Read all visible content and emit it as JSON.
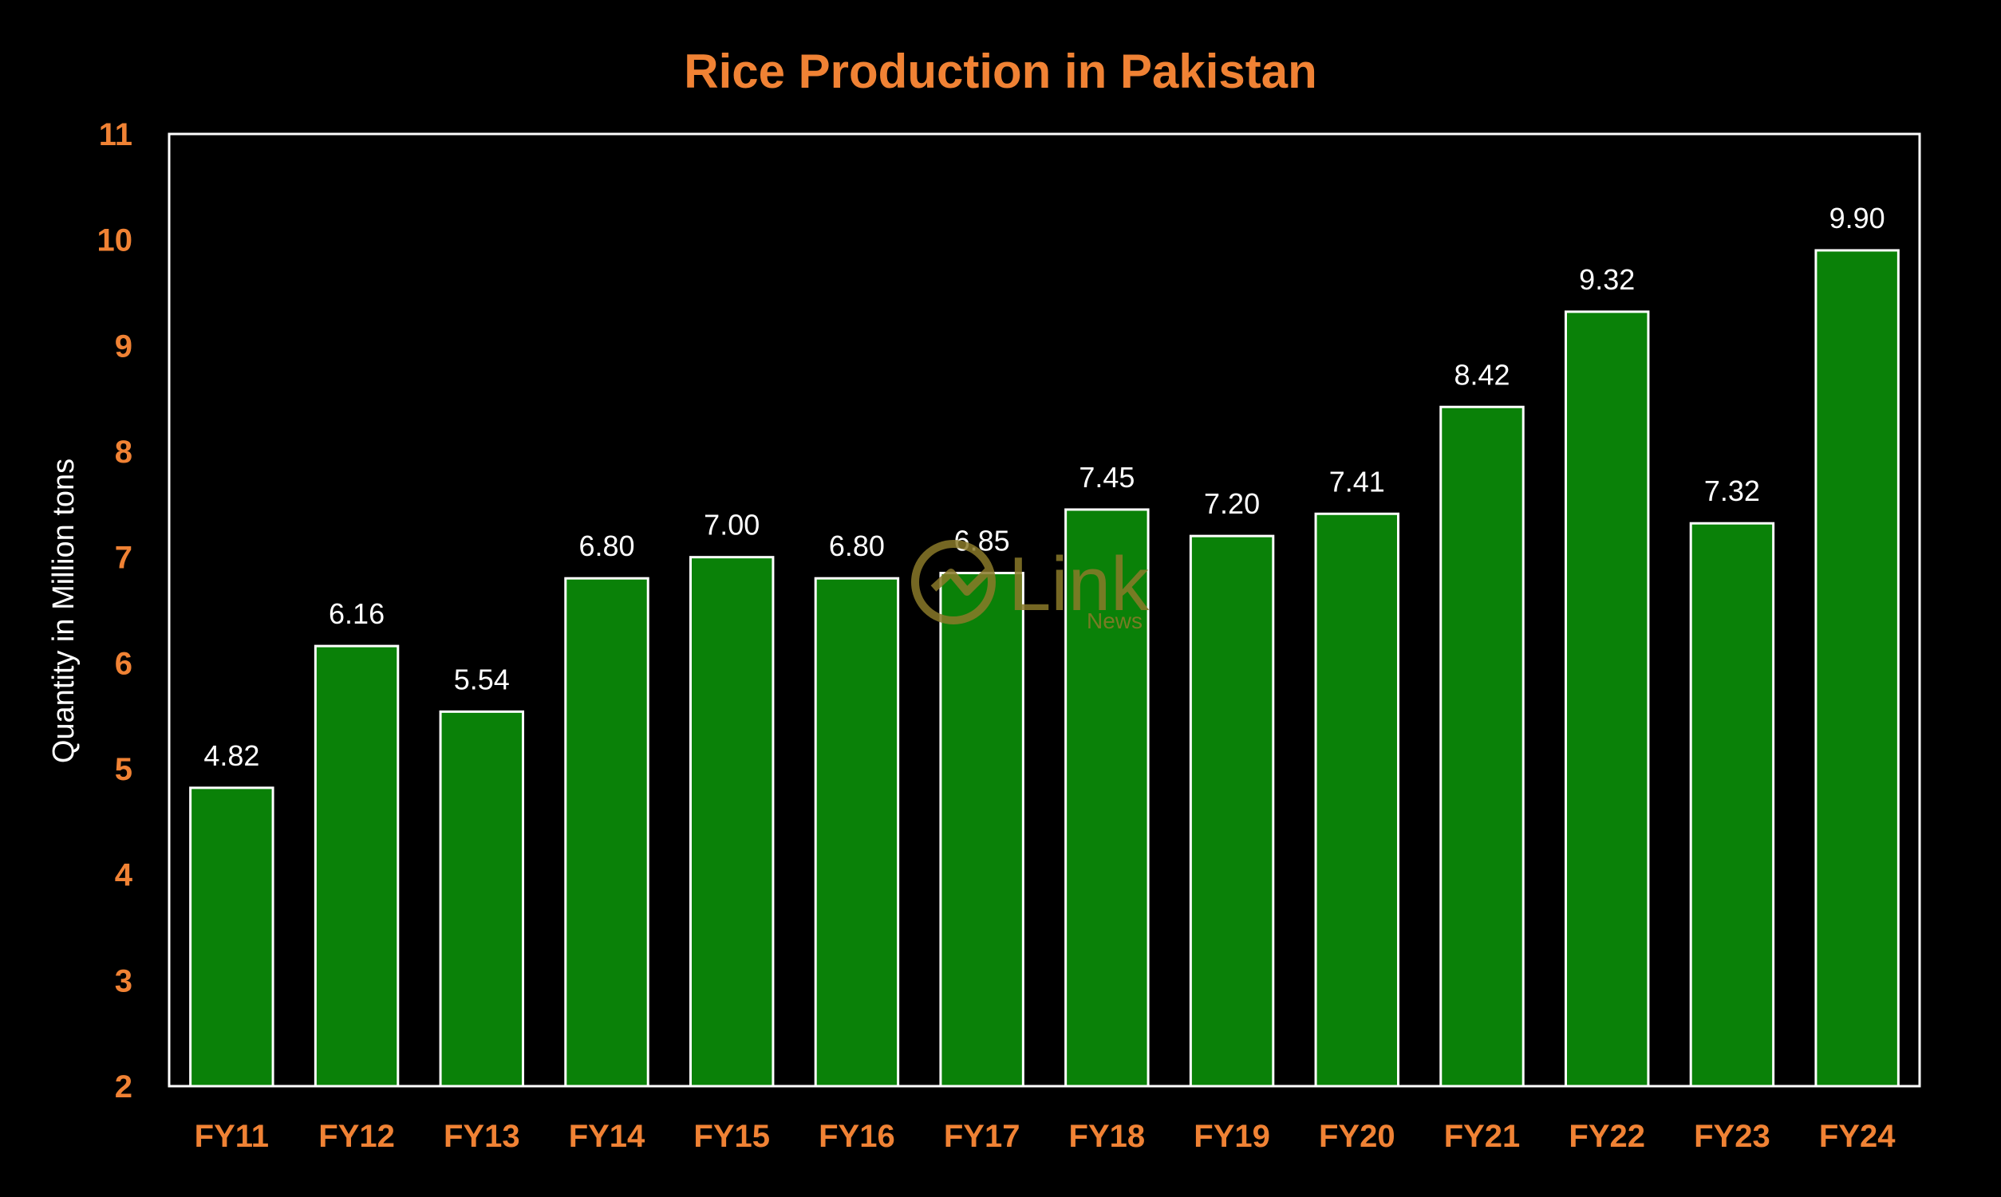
{
  "chart_data": {
    "type": "bar",
    "title": "Rice Production in Pakistan",
    "ylabel": "Quantity in Million tons",
    "xlabel": "",
    "categories": [
      "FY11",
      "FY12",
      "FY13",
      "FY14",
      "FY15",
      "FY16",
      "FY17",
      "FY18",
      "FY19",
      "FY20",
      "FY21",
      "FY22",
      "FY23",
      "FY24"
    ],
    "values": [
      4.82,
      6.16,
      5.54,
      6.8,
      7.0,
      6.8,
      6.85,
      7.45,
      7.2,
      7.41,
      8.42,
      9.32,
      7.32,
      9.9
    ],
    "data_labels": [
      "4.82",
      "6.16",
      "5.54",
      "6.80",
      "7.00",
      "6.80",
      "6.85",
      "7.45",
      "7.20",
      "7.41",
      "8.42",
      "9.32",
      "7.32",
      "9.90"
    ],
    "ylim": [
      2,
      11
    ],
    "yticks": [
      "2",
      "3",
      "4",
      "5",
      "6",
      "7",
      "8",
      "9",
      "10",
      "11"
    ],
    "grid": false,
    "legend": "none",
    "colors": {
      "background": "#000000",
      "bar": "#0a8108",
      "bar_outline": "#ffffff",
      "title": "#f08234",
      "tick_labels": "#f08234",
      "ylabel": "#ffffff",
      "data_labels": "#ffffff",
      "frame": "#ffffff"
    }
  },
  "watermark": {
    "logo_icon": "link-news-logo-icon",
    "word": "Link",
    "subword": "News",
    "color": "#8a7a2a"
  }
}
